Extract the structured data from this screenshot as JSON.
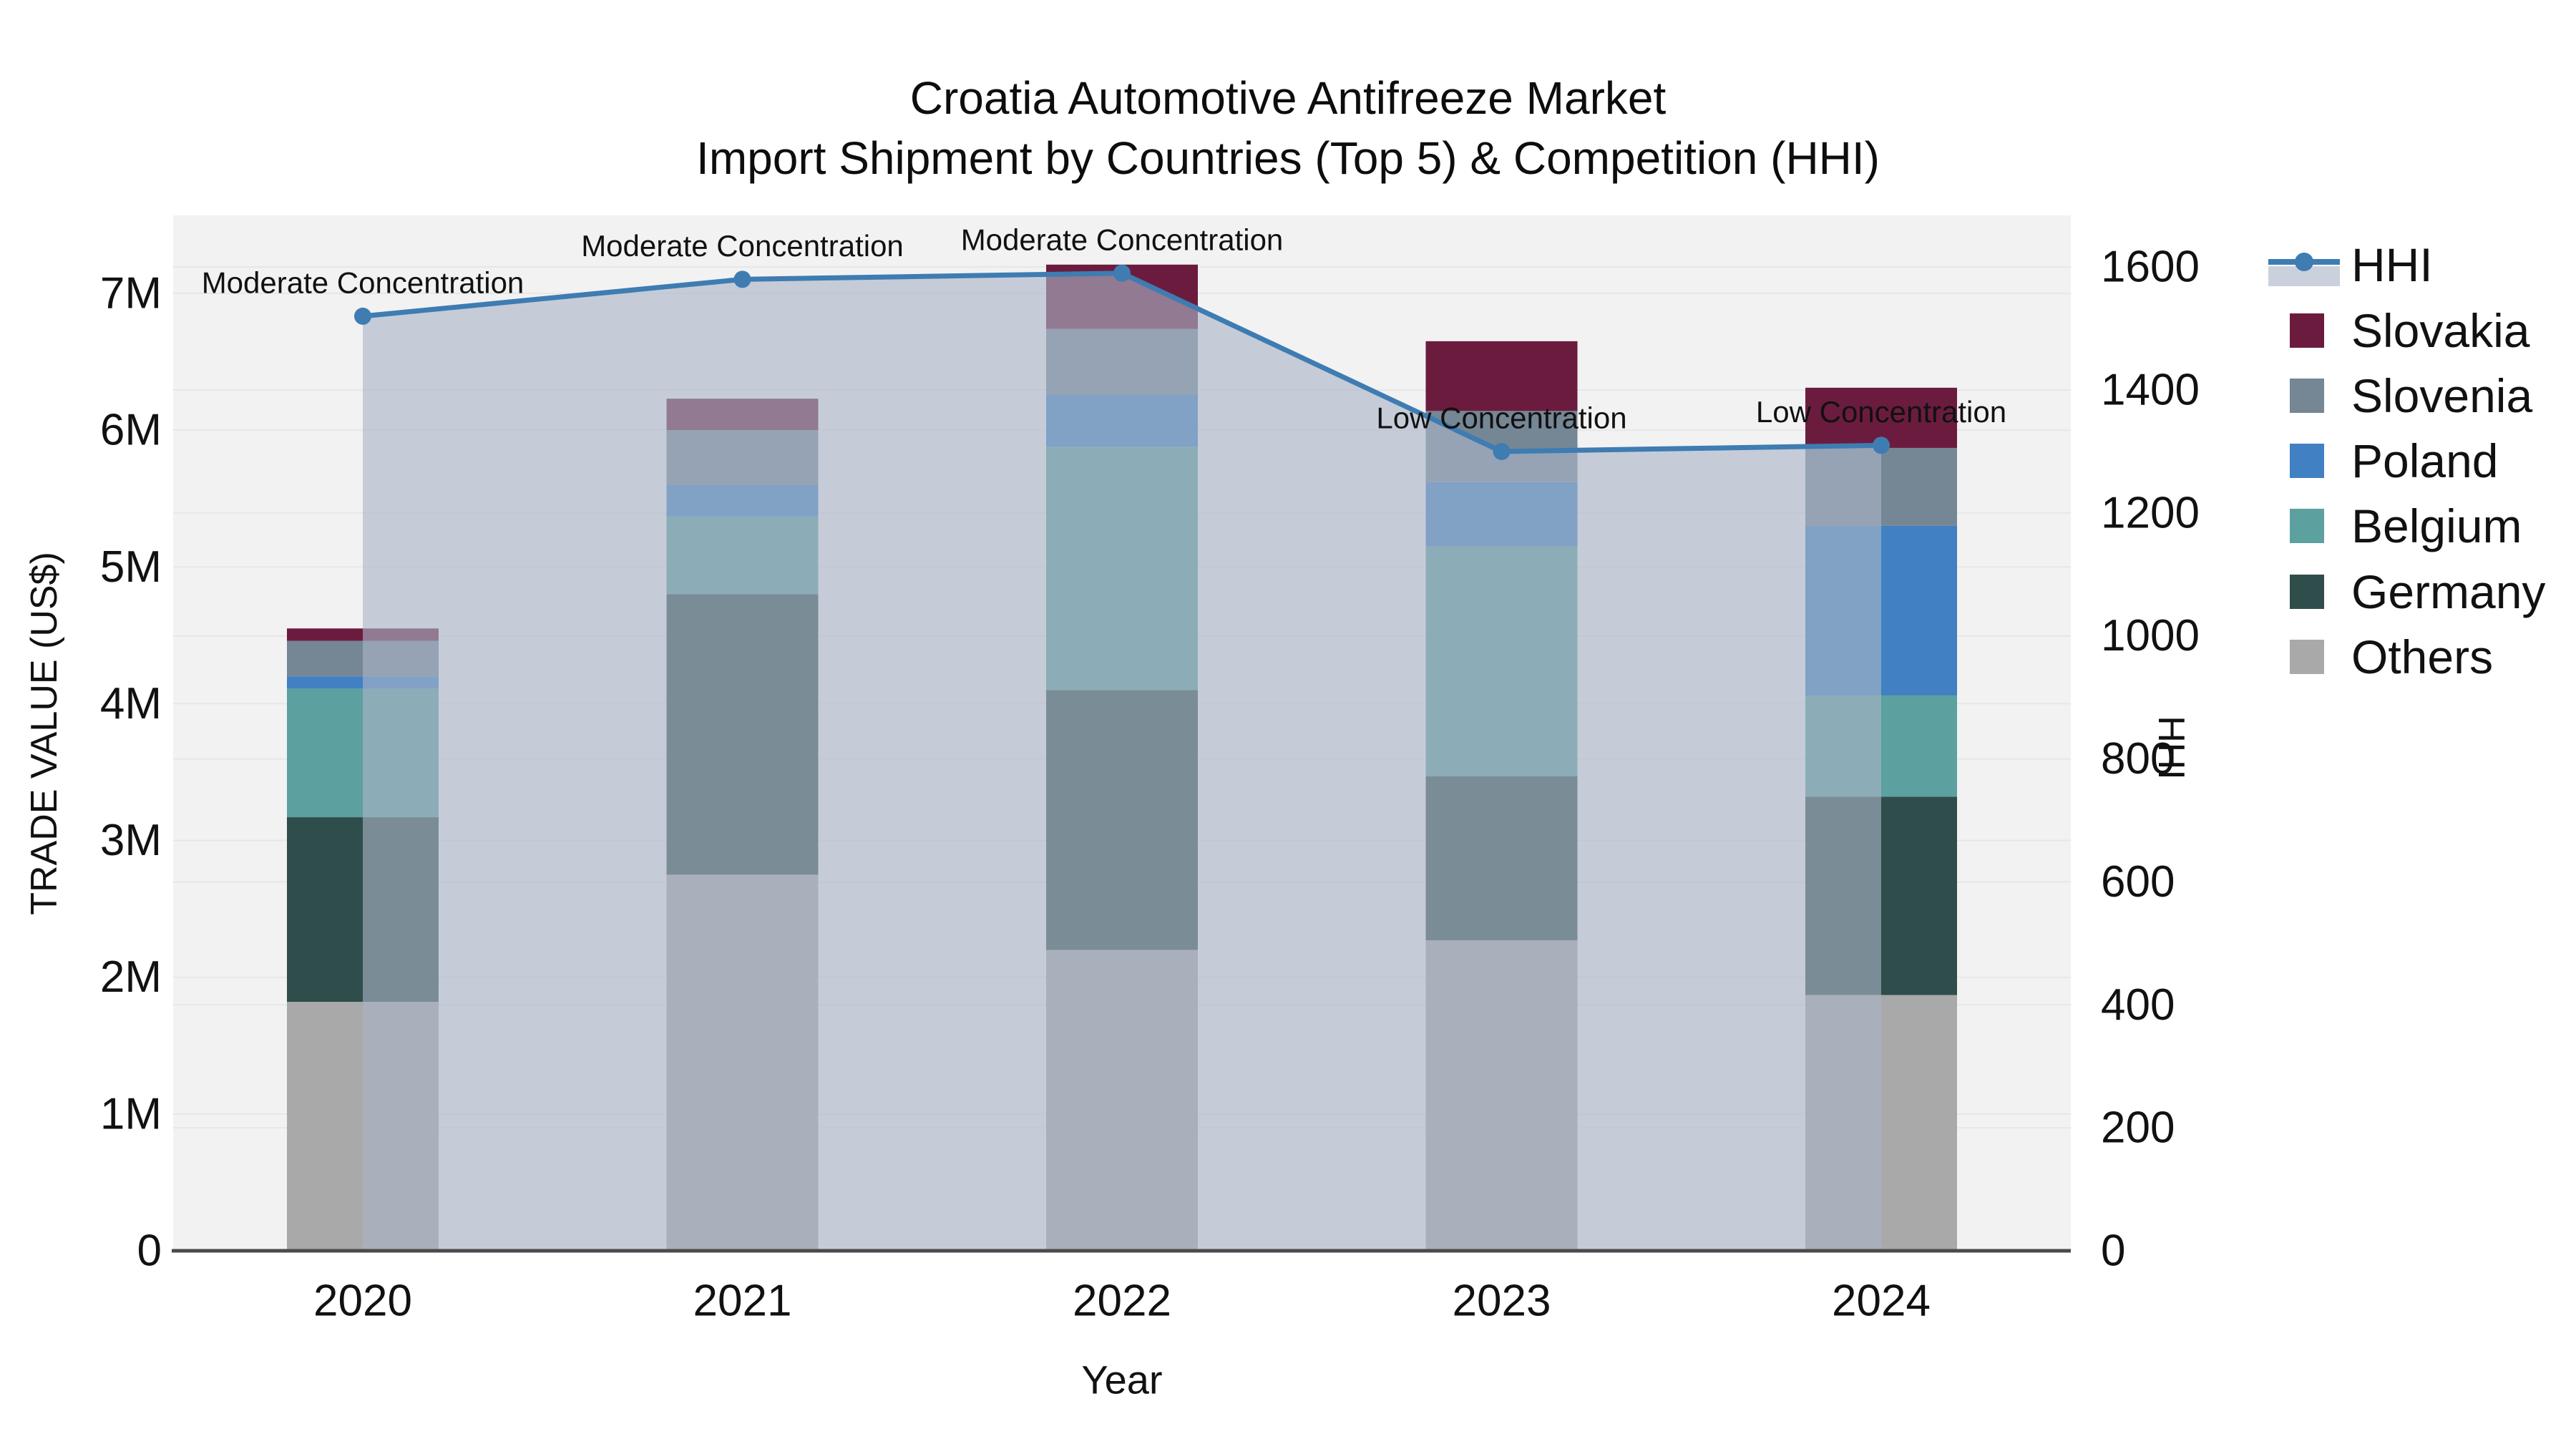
{
  "title": {
    "line1": "Croatia Automotive Antifreeze Market",
    "line2": "Import Shipment by Countries (Top 5) & Competition (HHI)"
  },
  "chart_data": {
    "type": "bar",
    "stacked": true,
    "value_unit": "million US$",
    "categories": [
      "2020",
      "2021",
      "2022",
      "2023",
      "2024"
    ],
    "series": [
      {
        "name": "Others",
        "color": "#A9A9AA",
        "values": [
          1.82,
          2.75,
          2.2,
          2.27,
          1.87
        ]
      },
      {
        "name": "Germany",
        "color": "#2E4D4B",
        "values": [
          1.35,
          2.05,
          1.9,
          1.2,
          1.45
        ]
      },
      {
        "name": "Belgium",
        "color": "#5CA0A0",
        "values": [
          0.94,
          0.57,
          1.78,
          1.68,
          0.74
        ]
      },
      {
        "name": "Poland",
        "color": "#4180C2",
        "values": [
          0.09,
          0.23,
          0.38,
          0.47,
          1.24
        ]
      },
      {
        "name": "Slovenia",
        "color": "#758695",
        "values": [
          0.26,
          0.4,
          0.48,
          0.52,
          0.57
        ]
      },
      {
        "name": "Slovakia",
        "color": "#6B1C3E",
        "values": [
          0.09,
          0.23,
          0.47,
          0.51,
          0.44
        ]
      }
    ],
    "line_series": {
      "name": "HHI",
      "color": "#3E7CB2",
      "area_fill": "rgba(169,180,198,0.62)",
      "values": [
        1520,
        1580,
        1590,
        1300,
        1310
      ]
    },
    "annotations": [
      {
        "category": "2020",
        "text": "Moderate Concentration"
      },
      {
        "category": "2021",
        "text": "Moderate Concentration"
      },
      {
        "category": "2022",
        "text": "Moderate Concentration"
      },
      {
        "category": "2023",
        "text": "Low Concentration"
      },
      {
        "category": "2024",
        "text": "Low Concentration"
      }
    ],
    "xlabel": "Year",
    "ylabel_left": "TRADE VALUE (US$)",
    "ylabel_right": "HHI",
    "yticks_left": [
      "0",
      "1M",
      "2M",
      "3M",
      "4M",
      "5M",
      "6M",
      "7M"
    ],
    "yticks_right": [
      "0",
      "200",
      "400",
      "600",
      "800",
      "1000",
      "1200",
      "1400",
      "1600"
    ],
    "ylim_left_millions": [
      0,
      7.57
    ],
    "ylim_right": [
      0,
      1684
    ],
    "grid": true,
    "legend_position": "top-right-outside",
    "legend_order": [
      "HHI",
      "Slovakia",
      "Slovenia",
      "Poland",
      "Belgium",
      "Germany",
      "Others"
    ],
    "colors": {
      "plot_background": "#f2f2f3",
      "gridline": "#e7e7e9",
      "axis_line": "#4a4a4a",
      "text": "#111111"
    }
  }
}
